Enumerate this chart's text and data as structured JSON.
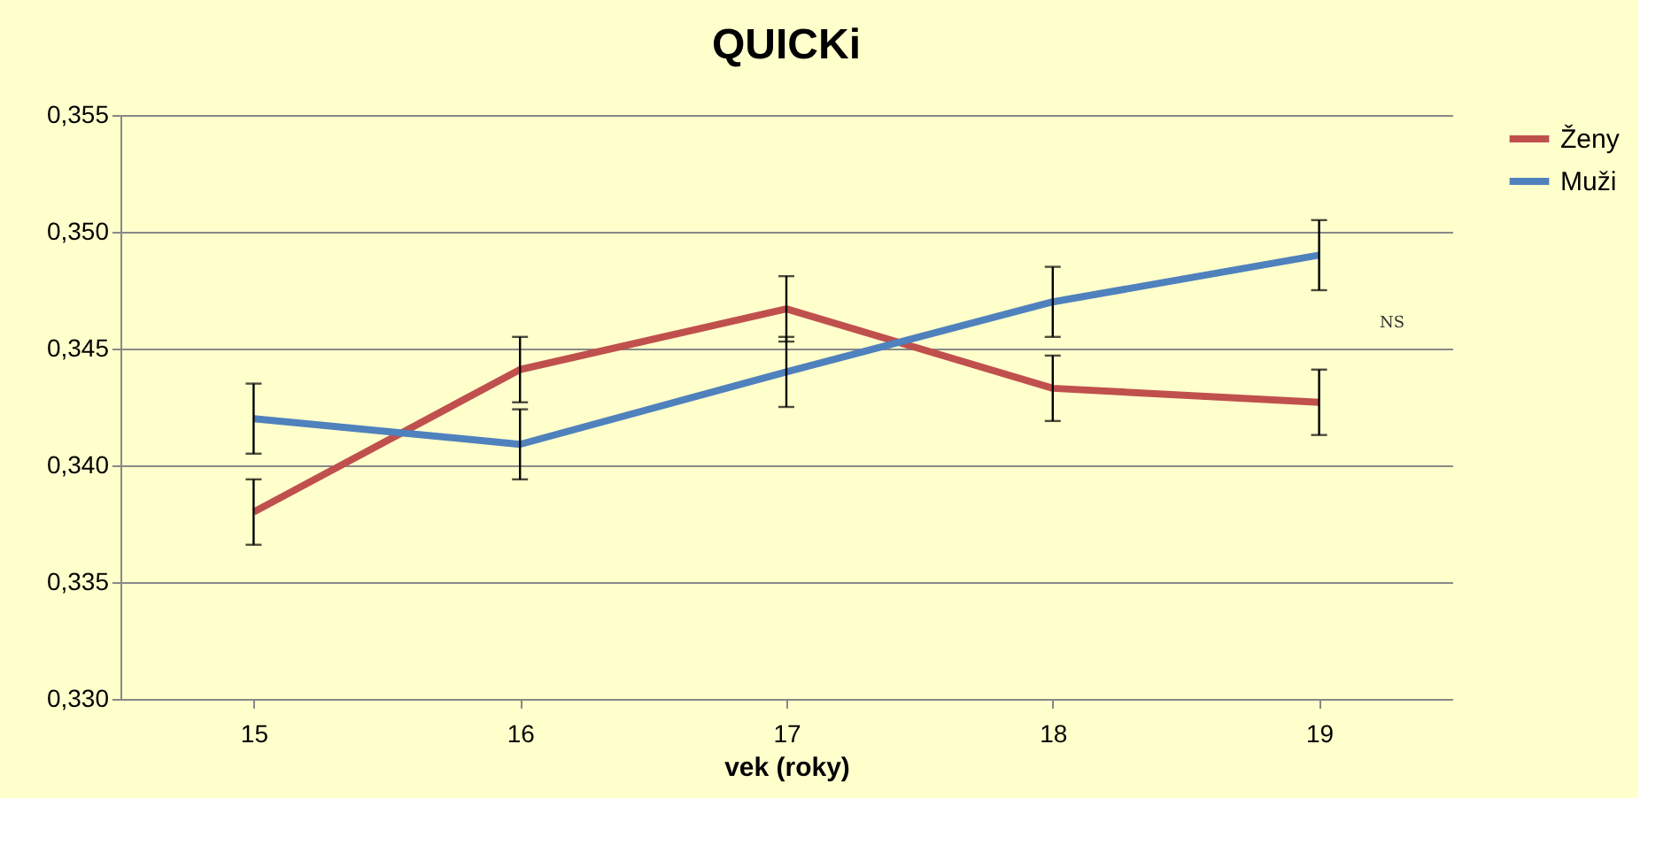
{
  "chart_data": {
    "type": "line",
    "title": "QUICKi",
    "xlabel": "vek (roky)",
    "categories": [
      "15",
      "16",
      "17",
      "18",
      "19"
    ],
    "series": [
      {
        "name": "Ženy",
        "color": "#c0504d",
        "values": [
          0.338,
          0.3441,
          0.3467,
          0.3433,
          0.3427
        ],
        "errors": [
          0.0014,
          0.0014,
          0.0014,
          0.0014,
          0.0014
        ]
      },
      {
        "name": "Muži",
        "color": "#4f81bd",
        "values": [
          0.342,
          0.3409,
          0.344,
          0.347,
          0.349
        ],
        "errors": [
          0.0015,
          0.0015,
          0.0015,
          0.0015,
          0.0015
        ]
      }
    ],
    "ylim": [
      0.33,
      0.355
    ],
    "yticks": [
      {
        "value": 0.33,
        "label": "0,330"
      },
      {
        "value": 0.335,
        "label": "0,335"
      },
      {
        "value": 0.34,
        "label": "0,340"
      },
      {
        "value": 0.345,
        "label": "0,345"
      },
      {
        "value": 0.35,
        "label": "0,350"
      },
      {
        "value": 0.355,
        "label": "0,355"
      }
    ],
    "grid": "y",
    "legend": "right",
    "marker": "none",
    "line_style": "solid",
    "annotations": [
      "NS"
    ]
  }
}
